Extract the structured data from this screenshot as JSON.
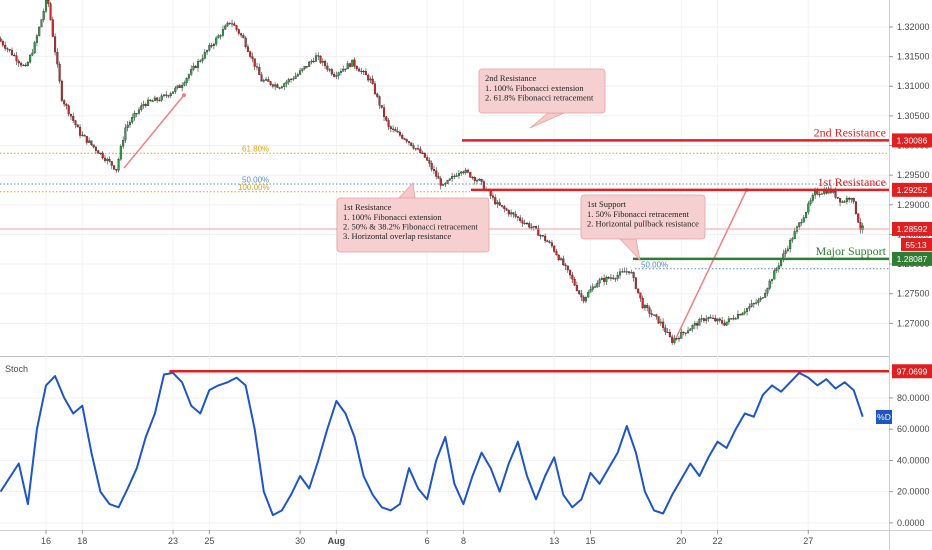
{
  "chart_data": [
    {
      "type": "candlestick",
      "panel": "price",
      "y_ticks": [
        "1.32000",
        "1.31500",
        "1.31000",
        "1.30500",
        "1.30000",
        "1.29500",
        "1.29000",
        "1.28500",
        "1.28000",
        "1.27500",
        "1.27000"
      ],
      "ylim": [
        1.2655,
        1.3232
      ],
      "x_ticks": [
        "16",
        "18",
        "23",
        "25",
        "30",
        "Aug",
        "6",
        "8",
        "13",
        "15",
        "20",
        "22",
        "27"
      ],
      "price_path": [
        {
          "day": 13.5,
          "price": 1.318
        },
        {
          "day": 15,
          "price": 1.313
        },
        {
          "day": 15.5,
          "price": 1.317
        },
        {
          "day": 16.2,
          "price": 1.325
        },
        {
          "day": 17,
          "price": 1.308
        },
        {
          "day": 18,
          "price": 1.302
        },
        {
          "day": 19,
          "price": 1.299
        },
        {
          "day": 20,
          "price": 1.296
        },
        {
          "day": 20.5,
          "price": 1.303
        },
        {
          "day": 21.5,
          "price": 1.307
        },
        {
          "day": 22.5,
          "price": 1.308
        },
        {
          "day": 23.5,
          "price": 1.31
        },
        {
          "day": 25,
          "price": 1.316
        },
        {
          "day": 26.3,
          "price": 1.321
        },
        {
          "day": 27,
          "price": 1.318
        },
        {
          "day": 28,
          "price": 1.311
        },
        {
          "day": 29,
          "price": 1.31
        },
        {
          "day": 30,
          "price": 1.312
        },
        {
          "day": 31,
          "price": 1.315
        },
        {
          "day": 32,
          "price": 1.312
        },
        {
          "day": 33,
          "price": 1.314
        },
        {
          "day": 34,
          "price": 1.311
        },
        {
          "day": 35,
          "price": 1.303
        },
        {
          "day": 36,
          "price": 1.301
        },
        {
          "day": 37,
          "price": 1.298
        },
        {
          "day": 38,
          "price": 1.293
        },
        {
          "day": 39,
          "price": 1.296
        },
        {
          "day": 40,
          "price": 1.294
        },
        {
          "day": 41,
          "price": 1.29
        },
        {
          "day": 42,
          "price": 1.288
        },
        {
          "day": 43,
          "price": 1.286
        },
        {
          "day": 44,
          "price": 1.283
        },
        {
          "day": 45,
          "price": 1.278
        },
        {
          "day": 45.7,
          "price": 1.274
        },
        {
          "day": 46.5,
          "price": 1.277
        },
        {
          "day": 47.5,
          "price": 1.278
        },
        {
          "day": 48.3,
          "price": 1.279
        },
        {
          "day": 49,
          "price": 1.273
        },
        {
          "day": 50,
          "price": 1.27
        },
        {
          "day": 50.6,
          "price": 1.267
        },
        {
          "day": 51.5,
          "price": 1.269
        },
        {
          "day": 52.5,
          "price": 1.271
        },
        {
          "day": 53.5,
          "price": 1.27
        },
        {
          "day": 54.5,
          "price": 1.272
        },
        {
          "day": 55.5,
          "price": 1.274
        },
        {
          "day": 56.5,
          "price": 1.28
        },
        {
          "day": 57.5,
          "price": 1.286
        },
        {
          "day": 58.5,
          "price": 1.292
        },
        {
          "day": 59.3,
          "price": 1.2925
        },
        {
          "day": 60,
          "price": 1.2905
        },
        {
          "day": 60.5,
          "price": 1.2915
        },
        {
          "day": 61,
          "price": 1.286
        }
      ],
      "levels": [
        {
          "label": "2nd Resistance",
          "price": 1.30086,
          "tag": "1.30086",
          "color": "#e02020"
        },
        {
          "label": "1st Resistance",
          "price": 1.29252,
          "tag": "1.29252",
          "color": "#e02020"
        },
        {
          "label": "Major Support",
          "price": 1.28087,
          "tag": "1.28087",
          "color": "#2e7d32"
        }
      ],
      "current_price": {
        "price": 1.28592,
        "tag": "1.28592",
        "countdown": "55:13",
        "color": "#e02020"
      },
      "fibonacci": [
        {
          "label": "61.80%",
          "price": 1.2987,
          "color": "#e0a020"
        },
        {
          "label": "50.00%",
          "price": 1.2935,
          "color": "#5b8bd6"
        },
        {
          "label": "100.00%",
          "price": 1.2922,
          "color": "#e0a020"
        },
        {
          "label": "50.00%",
          "price": 1.2792,
          "color": "#5b8bd6"
        }
      ],
      "annotations": [
        {
          "title": "2nd Resistance",
          "lines": [
            "1. 100% Fibonacci extension",
            "2. 61.8% Fibonacci retracement"
          ]
        },
        {
          "title": "1st Resistance",
          "lines": [
            "1. 100% Fibonacci extension",
            "2. 50% & 38.2% Fibonacci retracement",
            "3. Horizontal overlap resistance"
          ]
        },
        {
          "title": "1st Support",
          "lines": [
            "1. 50% Fibonacci retracement",
            "2. Horizontal pullback resistance"
          ]
        }
      ]
    },
    {
      "type": "line",
      "panel": "stochastic",
      "title": "Stoch",
      "series_label": "%D",
      "y_ticks": [
        "80.0000",
        "60.0000",
        "40.0000",
        "20.0000",
        "0.0000"
      ],
      "ylim": [
        -2,
        103
      ],
      "level": {
        "value": 97.0699,
        "tag": "97.0699",
        "color": "#e02020"
      },
      "values": [
        {
          "day": 13.5,
          "d": 20
        },
        {
          "day": 14.5,
          "d": 38
        },
        {
          "day": 15,
          "d": 12
        },
        {
          "day": 15.5,
          "d": 60
        },
        {
          "day": 16,
          "d": 88
        },
        {
          "day": 16.5,
          "d": 94
        },
        {
          "day": 17,
          "d": 80
        },
        {
          "day": 17.5,
          "d": 70
        },
        {
          "day": 18,
          "d": 75
        },
        {
          "day": 18.5,
          "d": 45
        },
        {
          "day": 19,
          "d": 20
        },
        {
          "day": 19.5,
          "d": 12
        },
        {
          "day": 20,
          "d": 10
        },
        {
          "day": 20.5,
          "d": 22
        },
        {
          "day": 21,
          "d": 35
        },
        {
          "day": 21.5,
          "d": 55
        },
        {
          "day": 22,
          "d": 70
        },
        {
          "day": 22.5,
          "d": 95
        },
        {
          "day": 23,
          "d": 96
        },
        {
          "day": 23.5,
          "d": 90
        },
        {
          "day": 24,
          "d": 75
        },
        {
          "day": 24.5,
          "d": 70
        },
        {
          "day": 25,
          "d": 85
        },
        {
          "day": 25.5,
          "d": 88
        },
        {
          "day": 26,
          "d": 90
        },
        {
          "day": 26.5,
          "d": 93
        },
        {
          "day": 27,
          "d": 88
        },
        {
          "day": 27.5,
          "d": 60
        },
        {
          "day": 28,
          "d": 20
        },
        {
          "day": 28.5,
          "d": 5
        },
        {
          "day": 29,
          "d": 8
        },
        {
          "day": 29.5,
          "d": 18
        },
        {
          "day": 30,
          "d": 30
        },
        {
          "day": 30.5,
          "d": 22
        },
        {
          "day": 31,
          "d": 40
        },
        {
          "day": 31.5,
          "d": 60
        },
        {
          "day": 32,
          "d": 78
        },
        {
          "day": 32.5,
          "d": 70
        },
        {
          "day": 33,
          "d": 55
        },
        {
          "day": 33.5,
          "d": 30
        },
        {
          "day": 34,
          "d": 18
        },
        {
          "day": 34.5,
          "d": 10
        },
        {
          "day": 35,
          "d": 8
        },
        {
          "day": 35.5,
          "d": 12
        },
        {
          "day": 36,
          "d": 35
        },
        {
          "day": 36.5,
          "d": 22
        },
        {
          "day": 37,
          "d": 15
        },
        {
          "day": 37.5,
          "d": 40
        },
        {
          "day": 38,
          "d": 55
        },
        {
          "day": 38.5,
          "d": 25
        },
        {
          "day": 39,
          "d": 12
        },
        {
          "day": 39.5,
          "d": 30
        },
        {
          "day": 40,
          "d": 45
        },
        {
          "day": 40.5,
          "d": 35
        },
        {
          "day": 41,
          "d": 20
        },
        {
          "day": 41.5,
          "d": 38
        },
        {
          "day": 42,
          "d": 52
        },
        {
          "day": 42.5,
          "d": 30
        },
        {
          "day": 43,
          "d": 15
        },
        {
          "day": 43.5,
          "d": 30
        },
        {
          "day": 44,
          "d": 42
        },
        {
          "day": 44.5,
          "d": 18
        },
        {
          "day": 45,
          "d": 10
        },
        {
          "day": 45.5,
          "d": 15
        },
        {
          "day": 46,
          "d": 32
        },
        {
          "day": 46.5,
          "d": 25
        },
        {
          "day": 47,
          "d": 35
        },
        {
          "day": 47.5,
          "d": 45
        },
        {
          "day": 48,
          "d": 62
        },
        {
          "day": 48.5,
          "d": 45
        },
        {
          "day": 49,
          "d": 20
        },
        {
          "day": 49.5,
          "d": 8
        },
        {
          "day": 50,
          "d": 6
        },
        {
          "day": 50.5,
          "d": 18
        },
        {
          "day": 51,
          "d": 28
        },
        {
          "day": 51.5,
          "d": 38
        },
        {
          "day": 52,
          "d": 30
        },
        {
          "day": 52.5,
          "d": 42
        },
        {
          "day": 53,
          "d": 52
        },
        {
          "day": 53.5,
          "d": 48
        },
        {
          "day": 54,
          "d": 60
        },
        {
          "day": 54.5,
          "d": 70
        },
        {
          "day": 55,
          "d": 68
        },
        {
          "day": 55.5,
          "d": 82
        },
        {
          "day": 56,
          "d": 88
        },
        {
          "day": 56.5,
          "d": 84
        },
        {
          "day": 57,
          "d": 90
        },
        {
          "day": 57.5,
          "d": 96
        },
        {
          "day": 58,
          "d": 93
        },
        {
          "day": 58.5,
          "d": 88
        },
        {
          "day": 59,
          "d": 92
        },
        {
          "day": 59.5,
          "d": 86
        },
        {
          "day": 60,
          "d": 90
        },
        {
          "day": 60.5,
          "d": 85
        },
        {
          "day": 61,
          "d": 68
        }
      ]
    }
  ]
}
